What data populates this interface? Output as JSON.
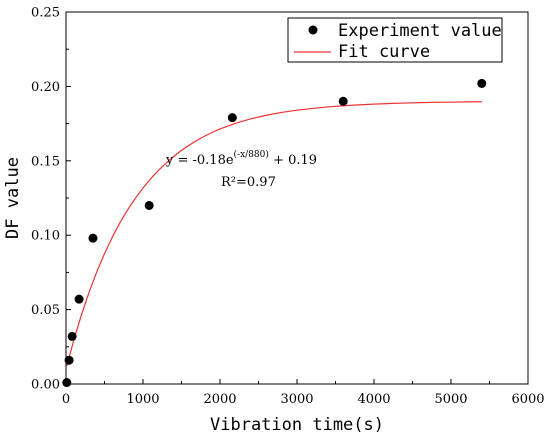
{
  "chart_data": {
    "type": "scatter",
    "xlabel": "Vibration time(s)",
    "ylabel": "DF value",
    "xlim": [
      0,
      6000
    ],
    "ylim": [
      0,
      0.25
    ],
    "x_ticks": [
      0,
      1000,
      2000,
      3000,
      4000,
      5000,
      6000
    ],
    "x_tick_labels": [
      "0",
      "1000",
      "2000",
      "3000",
      "4000",
      "5000",
      "6000"
    ],
    "y_ticks": [
      0.0,
      0.05,
      0.1,
      0.15,
      0.2,
      0.25
    ],
    "y_tick_labels": [
      "0.00",
      "0.05",
      "0.10",
      "0.15",
      "0.20",
      "0.25"
    ],
    "grid": false,
    "legend_position": "top-right",
    "series": [
      {
        "name": "Experiment value",
        "kind": "points",
        "color": "#000000",
        "x": [
          10,
          40,
          80,
          170,
          350,
          1080,
          2160,
          3600,
          5400
        ],
        "y": [
          0.001,
          0.016,
          0.032,
          0.057,
          0.098,
          0.12,
          0.179,
          0.19,
          0.202
        ]
      },
      {
        "name": "Fit curve",
        "kind": "line",
        "color": "#ee3333",
        "x": [
          10,
          100,
          200,
          300,
          400,
          500,
          600,
          700,
          800,
          900,
          1000,
          1100,
          1200,
          1300,
          1400,
          1500,
          1600,
          1700,
          1800,
          1900,
          2000,
          2200,
          2400,
          2600,
          2800,
          3000,
          3200,
          3400,
          3600,
          3800,
          4000,
          4200,
          4400,
          4600,
          4800,
          5000,
          5200,
          5400
        ],
        "y": [
          0.012,
          0.0293,
          0.0464,
          0.0617,
          0.0754,
          0.0876,
          0.0985,
          0.1083,
          0.117,
          0.1248,
          0.1317,
          0.138,
          0.1435,
          0.1485,
          0.153,
          0.157,
          0.1605,
          0.1637,
          0.1666,
          0.1691,
          0.1714,
          0.1752,
          0.1782,
          0.1806,
          0.1825,
          0.184,
          0.1852,
          0.1862,
          0.187,
          0.1876,
          0.1881,
          0.1885,
          0.1888,
          0.1891,
          0.1893,
          0.1894,
          0.1896,
          0.1897
        ]
      }
    ],
    "annotations": {
      "equation_main": "y = -0.18e",
      "equation_exponent": "(-x/880)",
      "equation_tail": " + 0.19",
      "r2": "R²=0.97"
    }
  }
}
